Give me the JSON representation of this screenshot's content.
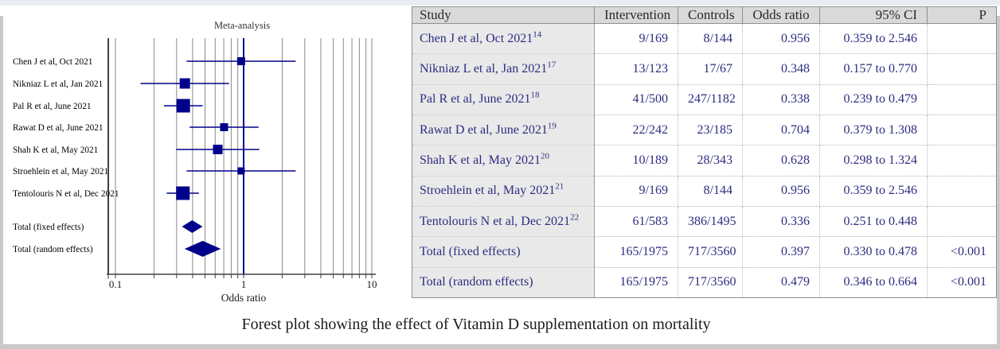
{
  "caption": "Forest plot showing the effect of Vitamin D supplementation on mortality",
  "chart_data": {
    "type": "forest",
    "title": "Meta-analysis",
    "xlabel": "Odds ratio",
    "x_scale": "log",
    "xlim": [
      0.088,
      11.5
    ],
    "x_major_ticks": [
      0.1,
      1,
      10
    ],
    "x_tick_labels": [
      "0.1",
      "1",
      "10"
    ],
    "gridlines": [
      0.1,
      0.2,
      0.3,
      0.4,
      0.5,
      0.6,
      0.7,
      0.8,
      0.9,
      1,
      2,
      3,
      4,
      5,
      6,
      7,
      8,
      9,
      10
    ],
    "reference_line": 1.0,
    "marker_color": "#00008B",
    "grid_color": "#8a8a8a",
    "axis_color": "#404040",
    "studies": [
      {
        "label": "Chen J et al, Oct 2021",
        "or": 0.956,
        "ci_low": 0.359,
        "ci_high": 2.546,
        "marker": "square",
        "size": 10
      },
      {
        "label": "Nikniaz L et al, Jan 2021",
        "or": 0.348,
        "ci_low": 0.157,
        "ci_high": 0.77,
        "marker": "square",
        "size": 13
      },
      {
        "label": "Pal R et al, June 2021",
        "or": 0.338,
        "ci_low": 0.239,
        "ci_high": 0.479,
        "marker": "square",
        "size": 17
      },
      {
        "label": "Rawat D et al, June 2021",
        "or": 0.704,
        "ci_low": 0.379,
        "ci_high": 1.308,
        "marker": "square",
        "size": 10
      },
      {
        "label": "Shah K et al, May 2021",
        "or": 0.628,
        "ci_low": 0.298,
        "ci_high": 1.324,
        "marker": "square",
        "size": 12
      },
      {
        "label": "Stroehlein et al, May 2021",
        "or": 0.956,
        "ci_low": 0.359,
        "ci_high": 2.546,
        "marker": "square",
        "size": 9
      },
      {
        "label": "Tentolouris N et al, Dec 2021",
        "or": 0.336,
        "ci_low": 0.251,
        "ci_high": 0.448,
        "marker": "square",
        "size": 17
      },
      {
        "label": "Total (fixed effects)",
        "or": 0.397,
        "ci_low": 0.33,
        "ci_high": 0.478,
        "marker": "diamond",
        "size": 16
      },
      {
        "label": "Total (random effects)",
        "or": 0.479,
        "ci_low": 0.346,
        "ci_high": 0.664,
        "marker": "diamond",
        "size": 20
      }
    ]
  },
  "table": {
    "columns": [
      "Study",
      "Intervention",
      "Controls",
      "Odds ratio",
      "95% CI",
      "P"
    ],
    "rows": [
      {
        "study": "Chen J et al, Oct 2021",
        "ref": "14",
        "intervention": "9/169",
        "controls": "8/144",
        "odds_ratio": "0.956",
        "ci": "0.359 to 2.546",
        "p": ""
      },
      {
        "study": "Nikniaz L et al, Jan 2021",
        "ref": "17",
        "intervention": "13/123",
        "controls": "17/67",
        "odds_ratio": "0.348",
        "ci": "0.157 to 0.770",
        "p": ""
      },
      {
        "study": "Pal R et al, June 2021",
        "ref": "18",
        "intervention": "41/500",
        "controls": "247/1182",
        "odds_ratio": "0.338",
        "ci": "0.239 to 0.479",
        "p": ""
      },
      {
        "study": "Rawat D et al, June 2021",
        "ref": "19",
        "intervention": "22/242",
        "controls": "23/185",
        "odds_ratio": "0.704",
        "ci": "0.379 to 1.308",
        "p": ""
      },
      {
        "study": "Shah K et al, May 2021",
        "ref": "20",
        "intervention": "10/189",
        "controls": "28/343",
        "odds_ratio": "0.628",
        "ci": "0.298 to 1.324",
        "p": ""
      },
      {
        "study": "Stroehlein et al, May 2021",
        "ref": "21",
        "intervention": "9/169",
        "controls": "8/144",
        "odds_ratio": "0.956",
        "ci": "0.359 to 2.546",
        "p": ""
      },
      {
        "study": "Tentolouris N et al, Dec 2021",
        "ref": "22",
        "intervention": "61/583",
        "controls": "386/1495",
        "odds_ratio": "0.336",
        "ci": "0.251 to 0.448",
        "p": ""
      },
      {
        "study": "Total (fixed effects)",
        "ref": "",
        "intervention": "165/1975",
        "controls": "717/3560",
        "odds_ratio": "0.397",
        "ci": "0.330 to 0.478",
        "p": "<0.001"
      },
      {
        "study": "Total (random effects)",
        "ref": "",
        "intervention": "165/1975",
        "controls": "717/3560",
        "odds_ratio": "0.479",
        "ci": "0.346 to 0.664",
        "p": "<0.001"
      }
    ]
  },
  "colors": {
    "navy": "#00008B",
    "grid": "#8a8a8a",
    "body_text": "#2d2d80",
    "header_text": "#2a2a2a",
    "table_header_bg": "#d9d9d9",
    "study_col_bg": "#e9e9e9",
    "frame_top": "#e9edf3",
    "frame_border": "#c9c9c9"
  }
}
